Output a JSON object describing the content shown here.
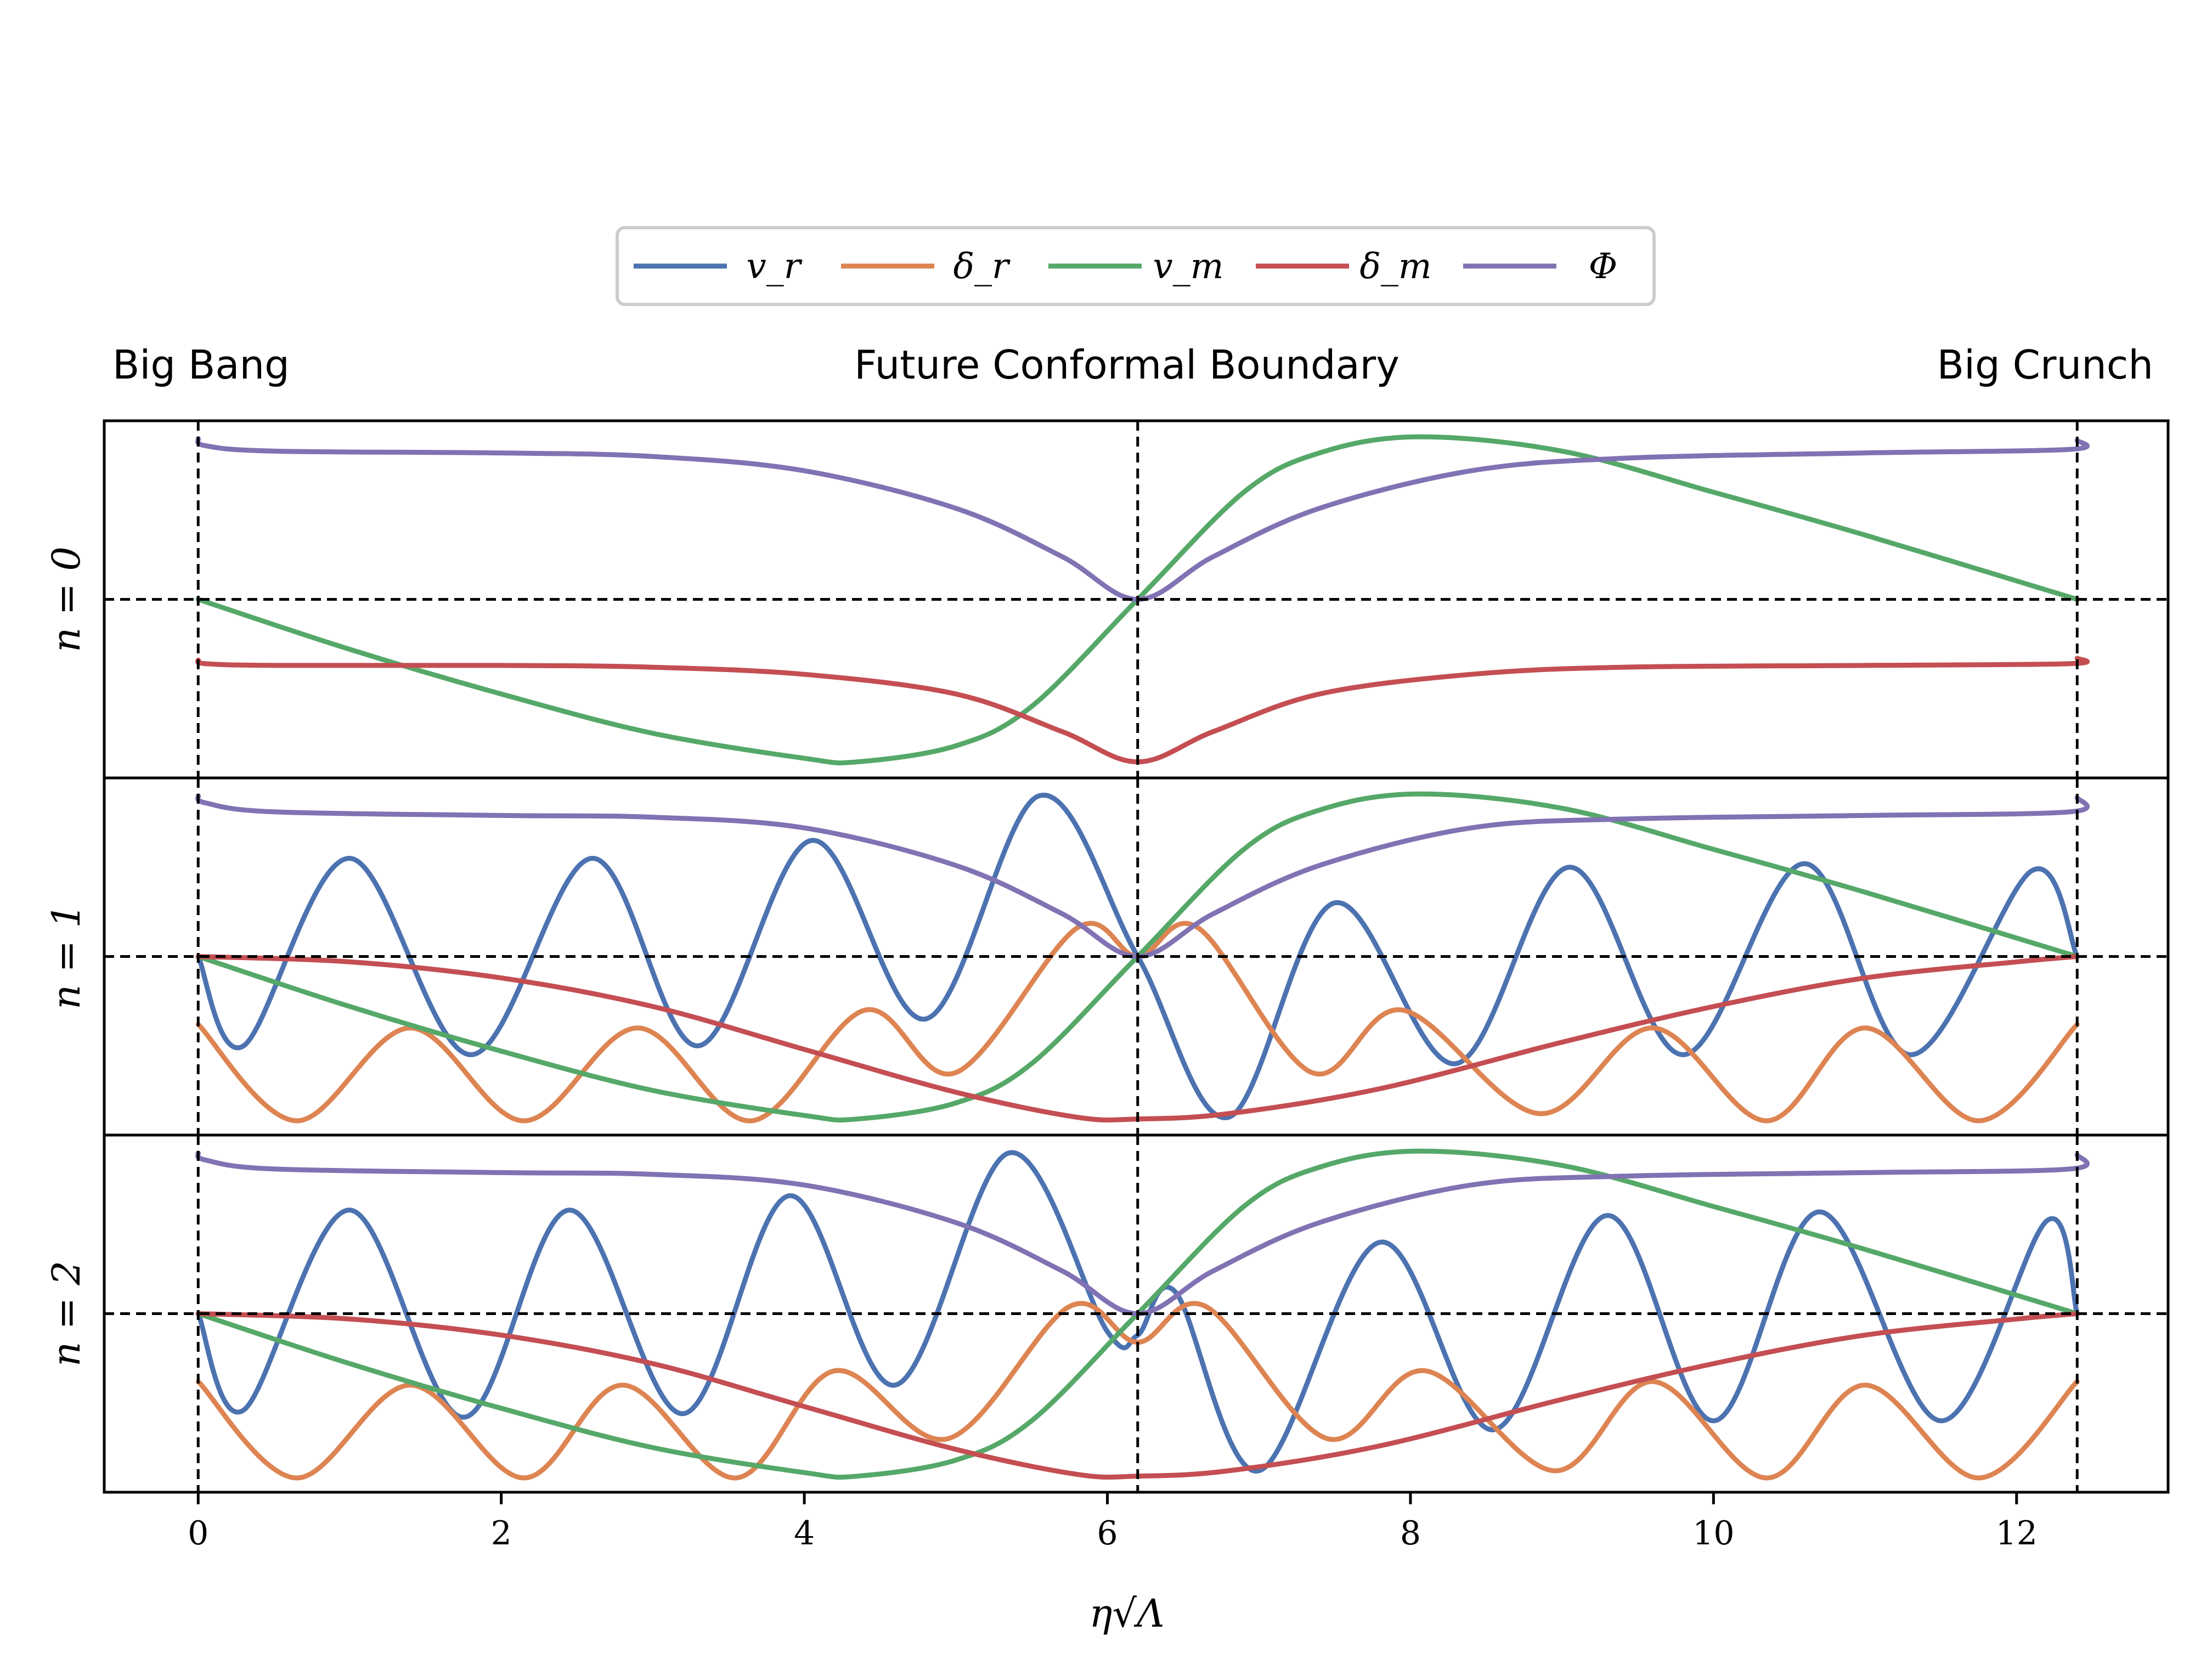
{
  "chart_data": {
    "type": "line",
    "legend": {
      "placement": "top-center",
      "entries": [
        {
          "key": "v_r",
          "label": "v_r",
          "color": "#4c72b0"
        },
        {
          "key": "delta_r",
          "label": "δ_r",
          "color": "#dd8452"
        },
        {
          "key": "v_m",
          "label": "v_m",
          "color": "#55a868"
        },
        {
          "key": "delta_m",
          "label": "δ_m",
          "color": "#c44e52"
        },
        {
          "key": "Phi",
          "label": "Φ",
          "color": "#8172b3"
        }
      ]
    },
    "top_labels": {
      "left": "Big Bang",
      "center": "Future Conformal Boundary",
      "right": "Big Crunch"
    },
    "xlabel": "η√Λ",
    "xlim": [
      -0.62,
      13.0
    ],
    "x_ticks": [
      0,
      2,
      4,
      6,
      8,
      10,
      12
    ],
    "x_tick_labels": [
      "0",
      "2",
      "4",
      "6",
      "8",
      "10",
      "12"
    ],
    "vertical_markers": [
      0,
      6.2,
      12.4
    ],
    "grid": false,
    "panels": [
      {
        "label": "n = 0",
        "ylim": [
          -1.0,
          1.0
        ],
        "series": {
          "v_r": [],
          "delta_r": [],
          "v_m": [
            [
              0,
              0
            ],
            [
              1,
              -0.28
            ],
            [
              2,
              -0.53
            ],
            [
              3,
              -0.75
            ],
            [
              4,
              -0.89
            ],
            [
              4.35,
              -0.91
            ],
            [
              5,
              -0.82
            ],
            [
              5.5,
              -0.6
            ],
            [
              6.2,
              0
            ],
            [
              6.9,
              0.6
            ],
            [
              7.4,
              0.82
            ],
            [
              8.05,
              0.91
            ],
            [
              9,
              0.83
            ],
            [
              10,
              0.6
            ],
            [
              11,
              0.36
            ],
            [
              12.4,
              0
            ]
          ],
          "delta_m": [
            [
              0,
              -0.34
            ],
            [
              0.05,
              -0.36
            ],
            [
              0.5,
              -0.37
            ],
            [
              2,
              -0.37
            ],
            [
              3,
              -0.38
            ],
            [
              4,
              -0.42
            ],
            [
              5,
              -0.53
            ],
            [
              5.7,
              -0.74
            ],
            [
              6.2,
              -0.91
            ],
            [
              6.7,
              -0.74
            ],
            [
              7.4,
              -0.53
            ],
            [
              8.4,
              -0.42
            ],
            [
              9.4,
              -0.38
            ],
            [
              11,
              -0.37
            ],
            [
              12.35,
              -0.36
            ],
            [
              12.4,
              -0.33
            ]
          ],
          "Phi": [
            [
              0,
              0.9
            ],
            [
              0.05,
              0.86
            ],
            [
              0.5,
              0.83
            ],
            [
              2,
              0.82
            ],
            [
              3,
              0.8
            ],
            [
              4,
              0.72
            ],
            [
              5,
              0.51
            ],
            [
              5.7,
              0.24
            ],
            [
              6.2,
              0
            ],
            [
              6.7,
              0.24
            ],
            [
              7.4,
              0.51
            ],
            [
              8.4,
              0.72
            ],
            [
              9.4,
              0.79
            ],
            [
              11,
              0.82
            ],
            [
              12.35,
              0.84
            ],
            [
              12.4,
              0.89
            ]
          ]
        }
      },
      {
        "label": "n = 1",
        "ylim": [
          -1.0,
          1.0
        ],
        "series": {
          "v_r": [
            [
              0,
              0
            ],
            [
              0.3,
              -0.5
            ],
            [
              1.0,
              0.55
            ],
            [
              1.8,
              -0.55
            ],
            [
              2.6,
              0.55
            ],
            [
              3.3,
              -0.5
            ],
            [
              4.05,
              0.65
            ],
            [
              4.8,
              -0.35
            ],
            [
              5.55,
              0.9
            ],
            [
              6.2,
              0
            ],
            [
              6.8,
              -0.9
            ],
            [
              7.5,
              0.3
            ],
            [
              8.3,
              -0.6
            ],
            [
              9.05,
              0.5
            ],
            [
              9.8,
              -0.55
            ],
            [
              10.6,
              0.52
            ],
            [
              11.3,
              -0.55
            ],
            [
              12.1,
              0.48
            ],
            [
              12.4,
              0
            ]
          ],
          "delta_r": [
            [
              0,
              -0.38
            ],
            [
              0.65,
              -0.92
            ],
            [
              1.4,
              -0.4
            ],
            [
              2.15,
              -0.92
            ],
            [
              2.9,
              -0.4
            ],
            [
              3.65,
              -0.92
            ],
            [
              4.4,
              -0.3
            ],
            [
              5.0,
              -0.65
            ],
            [
              5.8,
              0.16
            ],
            [
              6.2,
              0
            ],
            [
              6.6,
              0.16
            ],
            [
              7.35,
              -0.65
            ],
            [
              7.95,
              -0.3
            ],
            [
              8.85,
              -0.88
            ],
            [
              9.6,
              -0.4
            ],
            [
              10.35,
              -0.92
            ],
            [
              11.0,
              -0.4
            ],
            [
              11.75,
              -0.92
            ],
            [
              12.4,
              -0.38
            ]
          ],
          "v_m": [
            [
              0,
              0
            ],
            [
              1,
              -0.28
            ],
            [
              2,
              -0.53
            ],
            [
              3,
              -0.75
            ],
            [
              4,
              -0.89
            ],
            [
              4.35,
              -0.91
            ],
            [
              5,
              -0.82
            ],
            [
              5.5,
              -0.6
            ],
            [
              6.2,
              0
            ],
            [
              6.9,
              0.6
            ],
            [
              7.4,
              0.82
            ],
            [
              8.05,
              0.91
            ],
            [
              9,
              0.83
            ],
            [
              10,
              0.6
            ],
            [
              11,
              0.36
            ],
            [
              12.4,
              0
            ]
          ],
          "delta_m": [
            [
              0,
              0
            ],
            [
              1,
              -0.03
            ],
            [
              2,
              -0.12
            ],
            [
              3,
              -0.28
            ],
            [
              4,
              -0.52
            ],
            [
              5,
              -0.76
            ],
            [
              5.8,
              -0.9
            ],
            [
              6.2,
              -0.91
            ],
            [
              6.8,
              -0.88
            ],
            [
              7.8,
              -0.74
            ],
            [
              9,
              -0.48
            ],
            [
              10,
              -0.28
            ],
            [
              11,
              -0.12
            ],
            [
              12,
              -0.03
            ],
            [
              12.4,
              0
            ]
          ],
          "Phi": [
            [
              0,
              0.9
            ],
            [
              0.05,
              0.86
            ],
            [
              0.5,
              0.81
            ],
            [
              2,
              0.79
            ],
            [
              3,
              0.78
            ],
            [
              4,
              0.72
            ],
            [
              5,
              0.51
            ],
            [
              5.7,
              0.24
            ],
            [
              6.2,
              0
            ],
            [
              6.7,
              0.24
            ],
            [
              7.4,
              0.51
            ],
            [
              8.4,
              0.72
            ],
            [
              9.4,
              0.77
            ],
            [
              11,
              0.79
            ],
            [
              12.35,
              0.81
            ],
            [
              12.4,
              0.89
            ]
          ]
        }
      },
      {
        "label": "n = 2",
        "ylim": [
          -1.0,
          1.0
        ],
        "series": {
          "v_r": [
            [
              0,
              0
            ],
            [
              0.3,
              -0.54
            ],
            [
              1.0,
              0.58
            ],
            [
              1.75,
              -0.58
            ],
            [
              2.45,
              0.58
            ],
            [
              3.2,
              -0.56
            ],
            [
              3.9,
              0.66
            ],
            [
              4.6,
              -0.4
            ],
            [
              5.35,
              0.9
            ],
            [
              6.0,
              -0.1
            ],
            [
              6.2,
              -0.12
            ],
            [
              6.45,
              0.12
            ],
            [
              7.0,
              -0.88
            ],
            [
              7.8,
              0.4
            ],
            [
              8.55,
              -0.65
            ],
            [
              9.3,
              0.55
            ],
            [
              10.0,
              -0.6
            ],
            [
              10.7,
              0.57
            ],
            [
              11.5,
              -0.6
            ],
            [
              12.2,
              0.52
            ],
            [
              12.4,
              0
            ]
          ],
          "delta_r": [
            [
              0,
              -0.38
            ],
            [
              0.65,
              -0.92
            ],
            [
              1.4,
              -0.4
            ],
            [
              2.15,
              -0.92
            ],
            [
              2.8,
              -0.4
            ],
            [
              3.55,
              -0.92
            ],
            [
              4.2,
              -0.32
            ],
            [
              4.95,
              -0.7
            ],
            [
              5.75,
              0.04
            ],
            [
              6.2,
              -0.16
            ],
            [
              6.65,
              0.04
            ],
            [
              7.45,
              -0.7
            ],
            [
              8.1,
              -0.32
            ],
            [
              8.95,
              -0.88
            ],
            [
              9.6,
              -0.38
            ],
            [
              10.35,
              -0.92
            ],
            [
              11.0,
              -0.4
            ],
            [
              11.75,
              -0.92
            ],
            [
              12.4,
              -0.38
            ]
          ],
          "v_m": [
            [
              0,
              0
            ],
            [
              1,
              -0.28
            ],
            [
              2,
              -0.53
            ],
            [
              3,
              -0.75
            ],
            [
              4,
              -0.89
            ],
            [
              4.35,
              -0.91
            ],
            [
              5,
              -0.82
            ],
            [
              5.5,
              -0.6
            ],
            [
              6.2,
              0
            ],
            [
              6.9,
              0.6
            ],
            [
              7.4,
              0.82
            ],
            [
              8.05,
              0.91
            ],
            [
              9,
              0.83
            ],
            [
              10,
              0.6
            ],
            [
              11,
              0.36
            ],
            [
              12.4,
              0
            ]
          ],
          "delta_m": [
            [
              0,
              0
            ],
            [
              1,
              -0.03
            ],
            [
              2,
              -0.12
            ],
            [
              3,
              -0.28
            ],
            [
              4,
              -0.52
            ],
            [
              5,
              -0.76
            ],
            [
              5.8,
              -0.9
            ],
            [
              6.2,
              -0.91
            ],
            [
              6.8,
              -0.88
            ],
            [
              7.8,
              -0.74
            ],
            [
              9,
              -0.48
            ],
            [
              10,
              -0.28
            ],
            [
              11,
              -0.12
            ],
            [
              12,
              -0.03
            ],
            [
              12.4,
              0
            ]
          ],
          "Phi": [
            [
              0,
              0.9
            ],
            [
              0.05,
              0.86
            ],
            [
              0.5,
              0.81
            ],
            [
              2,
              0.79
            ],
            [
              3,
              0.78
            ],
            [
              4,
              0.72
            ],
            [
              5,
              0.51
            ],
            [
              5.7,
              0.24
            ],
            [
              6.2,
              0
            ],
            [
              6.7,
              0.24
            ],
            [
              7.4,
              0.51
            ],
            [
              8.4,
              0.72
            ],
            [
              9.4,
              0.77
            ],
            [
              11,
              0.79
            ],
            [
              12.35,
              0.81
            ],
            [
              12.4,
              0.89
            ]
          ]
        }
      }
    ]
  }
}
